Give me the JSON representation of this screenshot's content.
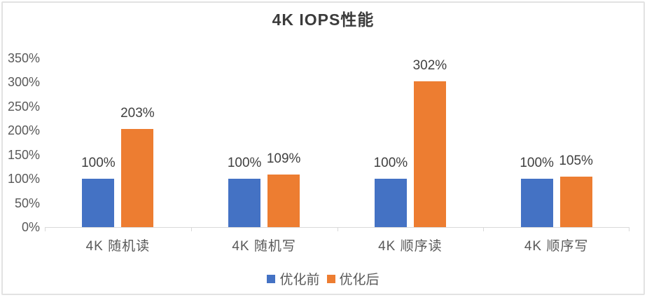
{
  "chart_data": {
    "type": "bar",
    "title": "4K IOPS性能",
    "categories": [
      "4K 随机读",
      "4K 随机写",
      "4K 顺序读",
      "4K 顺序写"
    ],
    "series": [
      {
        "name": "优化前",
        "color": "#4472C4",
        "values": [
          100,
          100,
          100,
          100
        ],
        "labels": [
          "100%",
          "100%",
          "100%",
          "100%"
        ]
      },
      {
        "name": "优化后",
        "color": "#ED7D31",
        "values": [
          203,
          109,
          302,
          105
        ],
        "labels": [
          "203%",
          "109%",
          "302%",
          "105%"
        ]
      }
    ],
    "xlabel": "",
    "ylabel": "",
    "ylim": [
      0,
      350
    ],
    "ytick_step": 50,
    "ytick_labels": [
      "0%",
      "50%",
      "100%",
      "150%",
      "200%",
      "250%",
      "300%",
      "350%"
    ],
    "grid": false,
    "legend_position": "bottom",
    "colors": {
      "axis_line": "#d9d9d9",
      "tick_label": "#595959",
      "category_label": "#595959",
      "data_label": "#404040",
      "legend_text": "#595959",
      "title_text": "#3b3b3b"
    }
  }
}
